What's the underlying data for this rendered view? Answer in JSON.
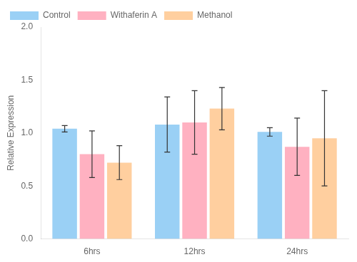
{
  "chart_data": {
    "type": "bar",
    "categories": [
      "6hrs",
      "12hrs",
      "24hrs"
    ],
    "series": [
      {
        "name": "Control",
        "values": [
          1.04,
          1.08,
          1.01
        ],
        "errors": [
          0.03,
          0.26,
          0.04
        ]
      },
      {
        "name": "Withaferin A",
        "values": [
          0.8,
          1.1,
          0.87
        ],
        "errors": [
          0.22,
          0.3,
          0.27
        ]
      },
      {
        "name": "Methanol",
        "values": [
          0.72,
          1.23,
          0.95
        ],
        "errors": [
          0.16,
          0.2,
          0.45
        ]
      }
    ],
    "ylabel": "Relative Expression",
    "ylim": [
      0.0,
      2.0
    ],
    "yticks": [
      {
        "value": 0,
        "label": "0.0"
      },
      0.5,
      {
        "value": 1,
        "label": "1.0"
      },
      1.5,
      {
        "value": 2,
        "label": "2.0"
      }
    ],
    "grid": false,
    "legend": "upper left"
  }
}
